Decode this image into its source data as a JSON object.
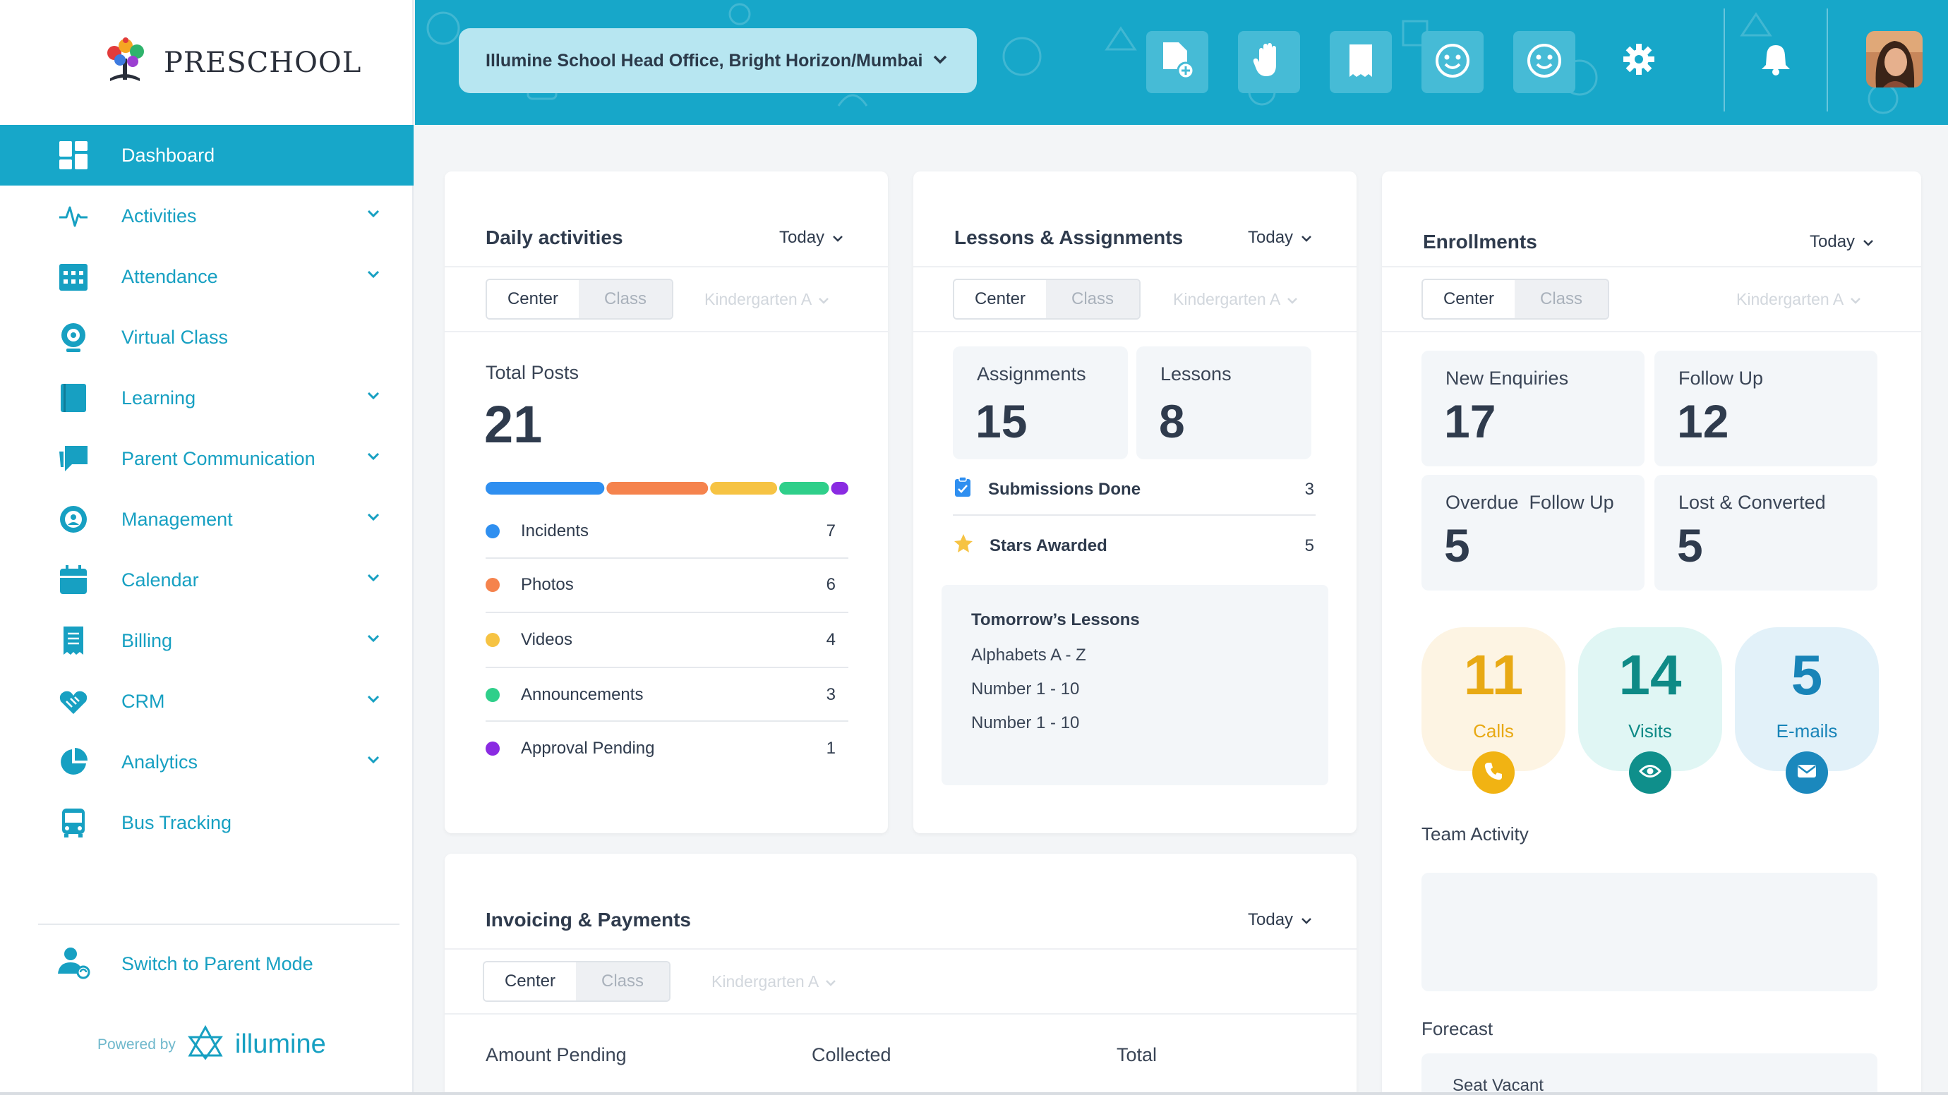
{
  "app": {
    "logo_text": "PRESCHOOL"
  },
  "sidebar": {
    "items": [
      {
        "label": "Dashboard",
        "icon": "dashboard-icon",
        "active": true
      },
      {
        "label": "Activities",
        "icon": "pulse-icon",
        "expandable": true
      },
      {
        "label": "Attendance",
        "icon": "calendar-grid-icon",
        "expandable": true
      },
      {
        "label": "Virtual Class",
        "icon": "webcam-icon",
        "expandable": false
      },
      {
        "label": "Learning",
        "icon": "book-icon",
        "expandable": true
      },
      {
        "label": "Parent Communication",
        "icon": "chat-icon",
        "expandable": true
      },
      {
        "label": "Management",
        "icon": "gear-user-icon",
        "expandable": true
      },
      {
        "label": "Calendar",
        "icon": "calendar-icon",
        "expandable": true
      },
      {
        "label": "Billing",
        "icon": "receipt-icon",
        "expandable": true
      },
      {
        "label": "CRM",
        "icon": "handshake-icon",
        "expandable": true
      },
      {
        "label": "Analytics",
        "icon": "pie-chart-icon",
        "expandable": true
      },
      {
        "label": "Bus Tracking",
        "icon": "bus-icon",
        "expandable": false
      }
    ],
    "switch_mode": "Switch to Parent Mode",
    "powered_by": "Powered by",
    "powered_brand": "illumine"
  },
  "header": {
    "location": "Illumine School Head Office, Bright Horizon/Mumbai"
  },
  "colors": {
    "primary": "#17a7c9",
    "incidents": "#2f8ff0",
    "photos": "#f5834d",
    "videos": "#f6c343",
    "announcements": "#2fcf8a",
    "approval": "#8a2be2"
  },
  "daily": {
    "title": "Daily activities",
    "period": "Today",
    "seg_on": "Center",
    "seg_off": "Class",
    "class_select": "Kindergarten A",
    "total_label": "Total Posts",
    "total": "21",
    "rows": [
      {
        "label": "Incidents",
        "count": "7"
      },
      {
        "label": "Photos",
        "count": "6"
      },
      {
        "label": "Videos",
        "count": "4"
      },
      {
        "label": "Announcements",
        "count": "3"
      },
      {
        "label": "Approval Pending",
        "count": "1"
      }
    ]
  },
  "lessons": {
    "title": "Lessons & Assignments",
    "period": "Today",
    "seg_on": "Center",
    "seg_off": "Class",
    "class_select": "Kindergarten A",
    "assignments_label": "Assignments",
    "assignments": "15",
    "lessons_label": "Lessons",
    "lessons": "8",
    "submissions_label": "Submissions Done",
    "submissions": "3",
    "stars_label": "Stars Awarded",
    "stars": "5",
    "tomorrow_title": "Tomorrow’s Lessons",
    "tomorrow": [
      "Alphabets A - Z",
      "Number 1 - 10",
      "Number 1 - 10"
    ]
  },
  "enroll": {
    "title": "Enrollments",
    "period": "Today",
    "seg_on": "Center",
    "seg_off": "Class",
    "class_select": "Kindergarten A",
    "new_label": "New Enquiries",
    "new": "17",
    "follow_label": "Follow Up",
    "follow": "12",
    "overdue_label": "Overdue  Follow Up",
    "overdue": "5",
    "lost_label": "Lost & Converted",
    "lost": "5",
    "calls": "11",
    "calls_label": "Calls",
    "visits": "14",
    "visits_label": "Visits",
    "emails": "5",
    "emails_label": "E-mails",
    "team_activity": "Team Activity",
    "forecast": "Forecast",
    "seat_vacant": "Seat Vacant"
  },
  "invoice": {
    "title": "Invoicing & Payments",
    "period": "Today",
    "seg_on": "Center",
    "seg_off": "Class",
    "class_select": "Kindergarten A",
    "pending_label": "Amount Pending",
    "collected_label": "Collected",
    "total_label": "Total"
  }
}
